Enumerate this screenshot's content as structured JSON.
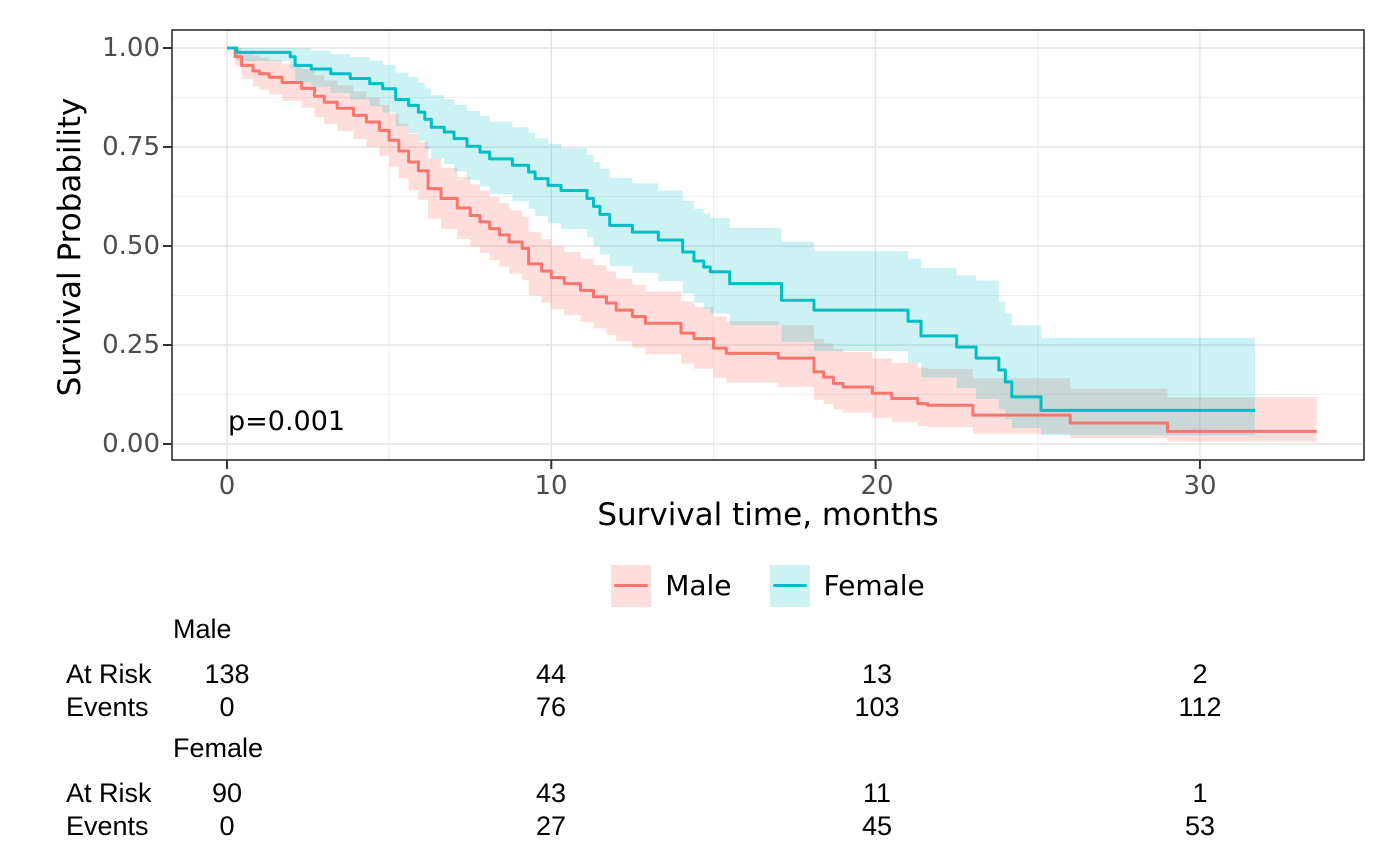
{
  "chart_data": {
    "type": "line",
    "subtype": "kaplan-meier-step-with-confidence-bands",
    "title": "",
    "xlabel": "Survival time, months",
    "ylabel": "Survival Probability",
    "p_value_label": "p=0.001",
    "xlim": [
      -1.7,
      35.1
    ],
    "ylim": [
      0.0,
      1.0
    ],
    "axes": {
      "x_major": [
        0,
        10,
        20,
        30
      ],
      "x_minor": [
        5,
        15,
        25
      ],
      "x_tick_labels": [
        "0",
        "10",
        "20",
        "30"
      ],
      "y_major": [
        0,
        0.25,
        0.5,
        0.75,
        1.0
      ],
      "y_minor": [
        0.125,
        0.375,
        0.625,
        0.875
      ],
      "y_tick_labels": [
        "0.00",
        "0.25",
        "0.50",
        "0.75",
        "1.00"
      ],
      "grid": true,
      "legend_position": "bottom"
    },
    "colors": {
      "male_line": "#F8766D",
      "female_line": "#00BFC4",
      "male_band": "rgba(248,118,109,0.24)",
      "female_band": "rgba(0,191,196,0.20)",
      "panel_border": "#3a3a3a",
      "grid_major": "#e4e4e4",
      "grid_minor": "#efefef",
      "tick_text": "#4d4d4d"
    },
    "series": [
      {
        "name": "Male",
        "color": "#F8766D",
        "band_fill": "rgba(248,118,109,0.24)",
        "steps": [
          [
            0,
            1.0,
            1.0,
            1.0
          ],
          [
            0.25,
            0.978,
            0.955,
            1.0
          ],
          [
            0.45,
            0.956,
            0.922,
            0.99
          ],
          [
            0.8,
            0.942,
            0.904,
            0.981
          ],
          [
            1.0,
            0.935,
            0.895,
            0.976
          ],
          [
            1.3,
            0.926,
            0.883,
            0.969
          ],
          [
            1.7,
            0.913,
            0.867,
            0.959
          ],
          [
            2.3,
            0.898,
            0.849,
            0.947
          ],
          [
            2.7,
            0.878,
            0.825,
            0.931
          ],
          [
            3.0,
            0.863,
            0.808,
            0.918
          ],
          [
            3.4,
            0.848,
            0.79,
            0.906
          ],
          [
            3.9,
            0.83,
            0.77,
            0.89
          ],
          [
            4.3,
            0.813,
            0.751,
            0.875
          ],
          [
            4.7,
            0.792,
            0.728,
            0.856
          ],
          [
            5.0,
            0.767,
            0.7,
            0.834
          ],
          [
            5.3,
            0.74,
            0.671,
            0.809
          ],
          [
            5.6,
            0.712,
            0.641,
            0.783
          ],
          [
            5.9,
            0.69,
            0.617,
            0.763
          ],
          [
            6.2,
            0.645,
            0.569,
            0.721
          ],
          [
            6.6,
            0.62,
            0.543,
            0.697
          ],
          [
            7.1,
            0.596,
            0.518,
            0.674
          ],
          [
            7.5,
            0.577,
            0.498,
            0.656
          ],
          [
            7.8,
            0.561,
            0.482,
            0.64
          ],
          [
            8.1,
            0.544,
            0.464,
            0.624
          ],
          [
            8.4,
            0.528,
            0.448,
            0.608
          ],
          [
            8.7,
            0.51,
            0.43,
            0.59
          ],
          [
            9.1,
            0.494,
            0.414,
            0.574
          ],
          [
            9.3,
            0.455,
            0.375,
            0.535
          ],
          [
            9.7,
            0.437,
            0.357,
            0.517
          ],
          [
            10.0,
            0.42,
            0.34,
            0.5
          ],
          [
            10.4,
            0.405,
            0.325,
            0.485
          ],
          [
            10.9,
            0.388,
            0.308,
            0.468
          ],
          [
            11.3,
            0.372,
            0.292,
            0.452
          ],
          [
            11.7,
            0.356,
            0.276,
            0.436
          ],
          [
            12.0,
            0.338,
            0.259,
            0.418
          ],
          [
            12.5,
            0.322,
            0.243,
            0.402
          ],
          [
            12.9,
            0.305,
            0.227,
            0.385
          ],
          [
            14.0,
            0.28,
            0.203,
            0.36
          ],
          [
            14.4,
            0.266,
            0.19,
            0.346
          ],
          [
            15.0,
            0.242,
            0.167,
            0.322
          ],
          [
            15.4,
            0.229,
            0.155,
            0.31
          ],
          [
            17.0,
            0.217,
            0.144,
            0.3
          ],
          [
            18.1,
            0.182,
            0.112,
            0.266
          ],
          [
            18.4,
            0.169,
            0.101,
            0.254
          ],
          [
            18.7,
            0.153,
            0.087,
            0.24
          ],
          [
            19.0,
            0.144,
            0.079,
            0.232
          ],
          [
            19.9,
            0.128,
            0.066,
            0.216
          ],
          [
            20.5,
            0.115,
            0.055,
            0.205
          ],
          [
            21.3,
            0.102,
            0.045,
            0.193
          ],
          [
            21.6,
            0.098,
            0.042,
            0.19
          ],
          [
            23.0,
            0.073,
            0.026,
            0.166
          ],
          [
            26.0,
            0.053,
            0.015,
            0.14
          ],
          [
            29.0,
            0.032,
            0.006,
            0.118
          ],
          [
            33.6,
            0.032,
            0.006,
            0.118
          ]
        ]
      },
      {
        "name": "Female",
        "color": "#00BFC4",
        "band_fill": "rgba(0,191,196,0.20)",
        "steps": [
          [
            0,
            1.0,
            1.0,
            1.0
          ],
          [
            0.3,
            0.989,
            0.967,
            1.0
          ],
          [
            1.95,
            0.978,
            0.948,
            1.0
          ],
          [
            2.1,
            0.956,
            0.914,
            0.999
          ],
          [
            2.6,
            0.947,
            0.902,
            0.993
          ],
          [
            3.2,
            0.935,
            0.886,
            0.985
          ],
          [
            3.8,
            0.923,
            0.87,
            0.977
          ],
          [
            4.4,
            0.91,
            0.853,
            0.968
          ],
          [
            4.8,
            0.897,
            0.837,
            0.958
          ],
          [
            5.2,
            0.87,
            0.803,
            0.938
          ],
          [
            5.6,
            0.855,
            0.785,
            0.927
          ],
          [
            5.9,
            0.838,
            0.765,
            0.913
          ],
          [
            6.1,
            0.82,
            0.744,
            0.898
          ],
          [
            6.3,
            0.8,
            0.721,
            0.881
          ],
          [
            6.7,
            0.788,
            0.707,
            0.871
          ],
          [
            7.0,
            0.771,
            0.688,
            0.857
          ],
          [
            7.4,
            0.752,
            0.667,
            0.841
          ],
          [
            7.8,
            0.737,
            0.65,
            0.828
          ],
          [
            8.1,
            0.72,
            0.631,
            0.814
          ],
          [
            8.8,
            0.704,
            0.613,
            0.8
          ],
          [
            9.3,
            0.687,
            0.594,
            0.786
          ],
          [
            9.5,
            0.67,
            0.576,
            0.772
          ],
          [
            9.9,
            0.653,
            0.557,
            0.758
          ],
          [
            10.3,
            0.64,
            0.543,
            0.747
          ],
          [
            11.1,
            0.62,
            0.522,
            0.73
          ],
          [
            11.3,
            0.6,
            0.5,
            0.712
          ],
          [
            11.5,
            0.58,
            0.479,
            0.695
          ],
          [
            11.8,
            0.552,
            0.449,
            0.672
          ],
          [
            12.5,
            0.535,
            0.432,
            0.658
          ],
          [
            13.3,
            0.515,
            0.411,
            0.64
          ],
          [
            14.05,
            0.485,
            0.38,
            0.614
          ],
          [
            14.4,
            0.462,
            0.357,
            0.594
          ],
          [
            14.7,
            0.447,
            0.342,
            0.582
          ],
          [
            14.9,
            0.435,
            0.33,
            0.571
          ],
          [
            15.5,
            0.405,
            0.3,
            0.546
          ],
          [
            17.1,
            0.363,
            0.258,
            0.511
          ],
          [
            18.1,
            0.338,
            0.235,
            0.487
          ],
          [
            21.0,
            0.31,
            0.205,
            0.468
          ],
          [
            21.4,
            0.273,
            0.168,
            0.444
          ],
          [
            22.5,
            0.245,
            0.141,
            0.426
          ],
          [
            23.1,
            0.217,
            0.114,
            0.413
          ],
          [
            23.8,
            0.187,
            0.088,
            0.36
          ],
          [
            24.0,
            0.157,
            0.063,
            0.33
          ],
          [
            24.2,
            0.119,
            0.04,
            0.3
          ],
          [
            25.1,
            0.085,
            0.022,
            0.268
          ],
          [
            31.7,
            0.085,
            0.022,
            0.268
          ]
        ]
      }
    ]
  },
  "risk_table": {
    "times": [
      0,
      10,
      20,
      30
    ],
    "row_labels": {
      "at_risk": "At Risk",
      "events": "Events"
    },
    "groups": [
      {
        "name": "Male",
        "at_risk": [
          "138",
          "44",
          "13",
          "2"
        ],
        "events": [
          "0",
          "76",
          "103",
          "112"
        ]
      },
      {
        "name": "Female",
        "at_risk": [
          "90",
          "43",
          "11",
          "1"
        ],
        "events": [
          "0",
          "27",
          "45",
          "53"
        ]
      }
    ]
  }
}
